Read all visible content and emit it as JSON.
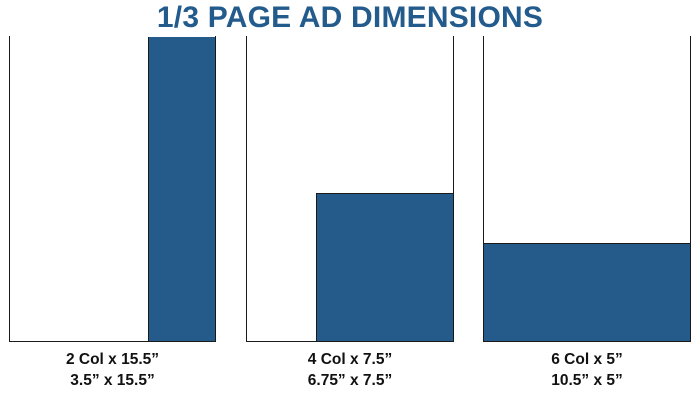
{
  "title": "1/3 PAGE AD DIMENSIONS",
  "colors": {
    "title": "#235b8c",
    "ad_fill": "#245b8b",
    "outline": "#1a1a1a",
    "caption": "#111111"
  },
  "layouts": [
    {
      "columns_label": "2 Col x 15.5”",
      "size_label": "3.5” x 15.5”"
    },
    {
      "columns_label": "4 Col x 7.5”",
      "size_label": "6.75” x 7.5”"
    },
    {
      "columns_label": "6 Col x 5”",
      "size_label": "10.5” x 5”"
    }
  ]
}
